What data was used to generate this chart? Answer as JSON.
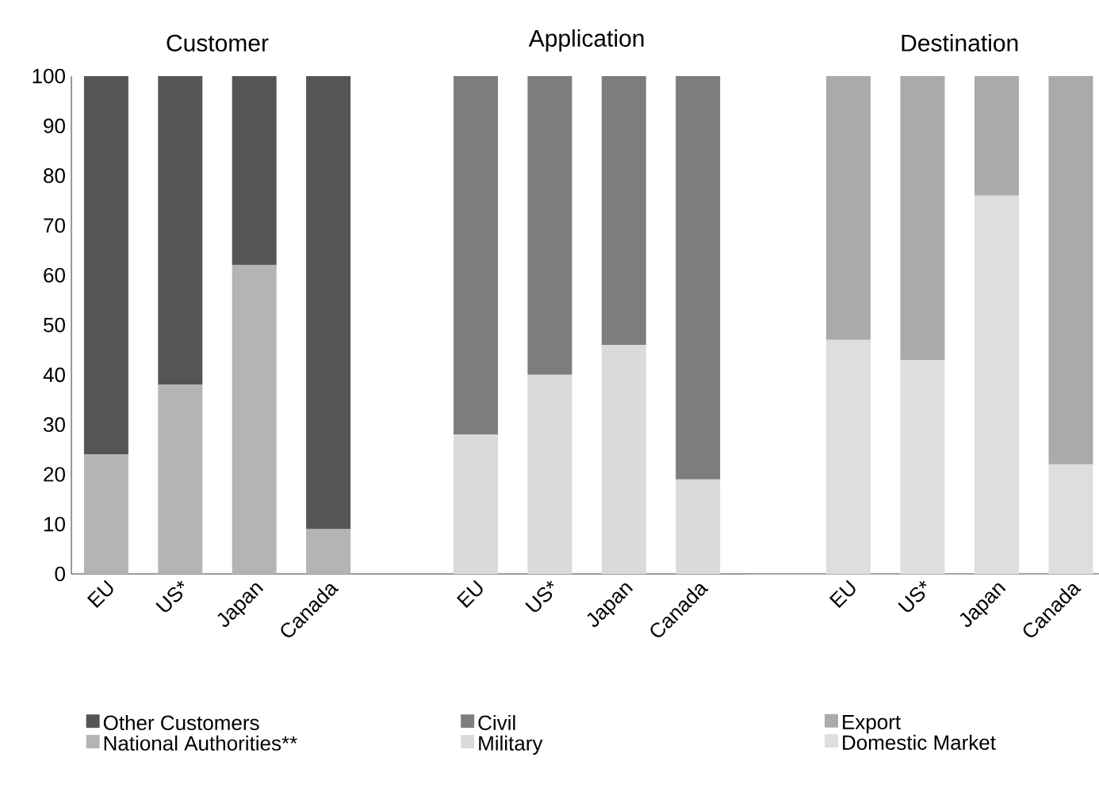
{
  "chart_data": [
    {
      "type": "bar",
      "title": "Customer",
      "categories": [
        "EU",
        "US*",
        "Japan",
        "Canada"
      ],
      "stacked": true,
      "ylim": [
        0,
        100
      ],
      "yticks": [
        0,
        10,
        20,
        30,
        40,
        50,
        60,
        70,
        80,
        90,
        100
      ],
      "legend": "bottom",
      "series": [
        {
          "name": "National Authorities**",
          "color": "#b4b4b4",
          "values": [
            24,
            38,
            62,
            9
          ]
        },
        {
          "name": "Other Customers",
          "color": "#555555",
          "values": [
            76,
            62,
            38,
            91
          ]
        }
      ]
    },
    {
      "type": "bar",
      "title": "Application",
      "categories": [
        "EU",
        "US*",
        "Japan",
        "Canada"
      ],
      "stacked": true,
      "ylim": [
        0,
        100
      ],
      "yticks": [
        0,
        10,
        20,
        30,
        40,
        50,
        60,
        70,
        80,
        90,
        100
      ],
      "tick_labels": "x",
      "legend": "bottom",
      "series": [
        {
          "name": "Military",
          "color": "#dadada",
          "values": [
            28,
            40,
            46,
            19
          ]
        },
        {
          "name": "Civil",
          "color": "#7d7d7d",
          "values": [
            72,
            60,
            54,
            81
          ]
        }
      ]
    },
    {
      "type": "bar",
      "title": "Destination",
      "categories": [
        "EU",
        "US*",
        "Japan",
        "Canada"
      ],
      "stacked": true,
      "ylim": [
        0,
        100
      ],
      "yticks": [
        0,
        10,
        20,
        30,
        40,
        50,
        60,
        70,
        80,
        90,
        100
      ],
      "tick_labels": "x",
      "legend": "bottom",
      "series": [
        {
          "name": "Domestic Market",
          "color": "#dedede",
          "values": [
            47,
            43,
            76,
            22
          ]
        },
        {
          "name": "Export",
          "color": "#aaaaaa",
          "values": [
            53,
            57,
            24,
            78
          ]
        }
      ]
    }
  ]
}
